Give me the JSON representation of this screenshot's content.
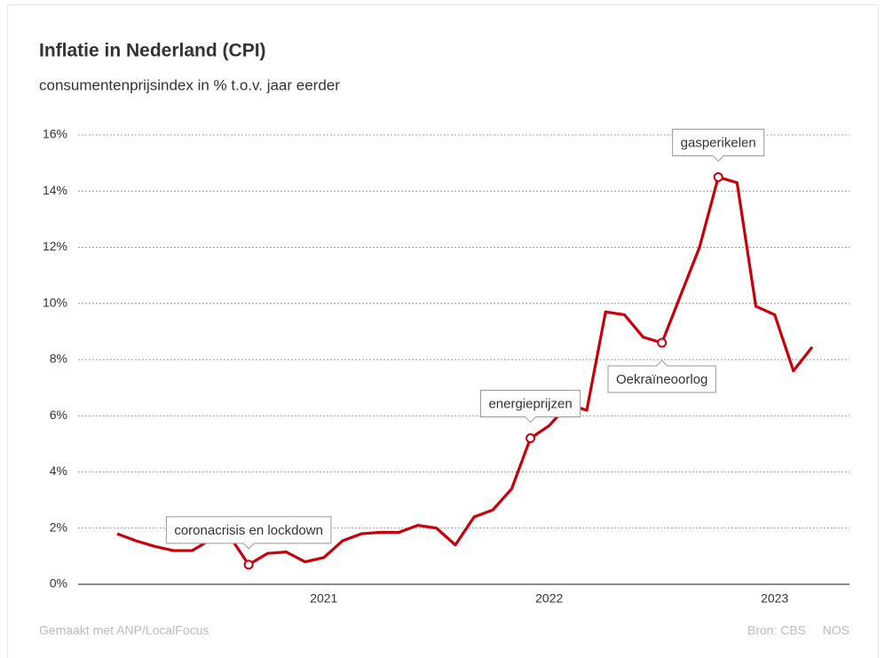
{
  "chart_data": {
    "type": "line",
    "title": "Inflatie in Nederland (CPI)",
    "subtitle": "consumentenprijsindex in % t.o.v. jaar eerder",
    "categories": [
      null,
      null,
      null,
      null,
      null,
      null,
      null,
      null,
      null,
      null,
      null,
      "2021",
      null,
      null,
      null,
      null,
      null,
      null,
      null,
      null,
      null,
      null,
      null,
      "2022",
      null,
      null,
      null,
      null,
      null,
      null,
      null,
      null,
      null,
      null,
      null,
      "2023",
      null,
      null
    ],
    "series": [
      {
        "name": "CPI",
        "color": "#c8000a",
        "values": [
          1.8,
          1.55,
          1.35,
          1.2,
          1.2,
          1.6,
          1.7,
          0.7,
          1.1,
          1.15,
          0.8,
          0.95,
          1.55,
          1.8,
          1.85,
          1.85,
          2.1,
          2.0,
          1.4,
          2.4,
          2.65,
          3.4,
          5.2,
          5.65,
          6.4,
          6.2,
          9.7,
          9.6,
          8.8,
          8.6,
          10.3,
          12.0,
          14.5,
          14.3,
          9.9,
          9.6,
          7.6,
          8.45
        ]
      }
    ],
    "ylim": [
      0,
      16
    ],
    "yticks": [
      {
        "value": 0,
        "label": "0%"
      },
      {
        "value": 2,
        "label": "2%"
      },
      {
        "value": 4,
        "label": "4%"
      },
      {
        "value": 6,
        "label": "6%"
      },
      {
        "value": 8,
        "label": "8%"
      },
      {
        "value": 10,
        "label": "10%"
      },
      {
        "value": 12,
        "label": "12%"
      },
      {
        "value": 14,
        "label": "14%"
      },
      {
        "value": 16,
        "label": "16%"
      }
    ],
    "grid": true,
    "annotations": [
      "coronacrisis en lockdown",
      "energieprijzen",
      "Oekraïneoorlog",
      "gasperikelen"
    ],
    "footer": {
      "credit": "Gemaakt met ANP/LocalFocus",
      "source": "Bron: CBS",
      "brand": "NOS"
    }
  }
}
